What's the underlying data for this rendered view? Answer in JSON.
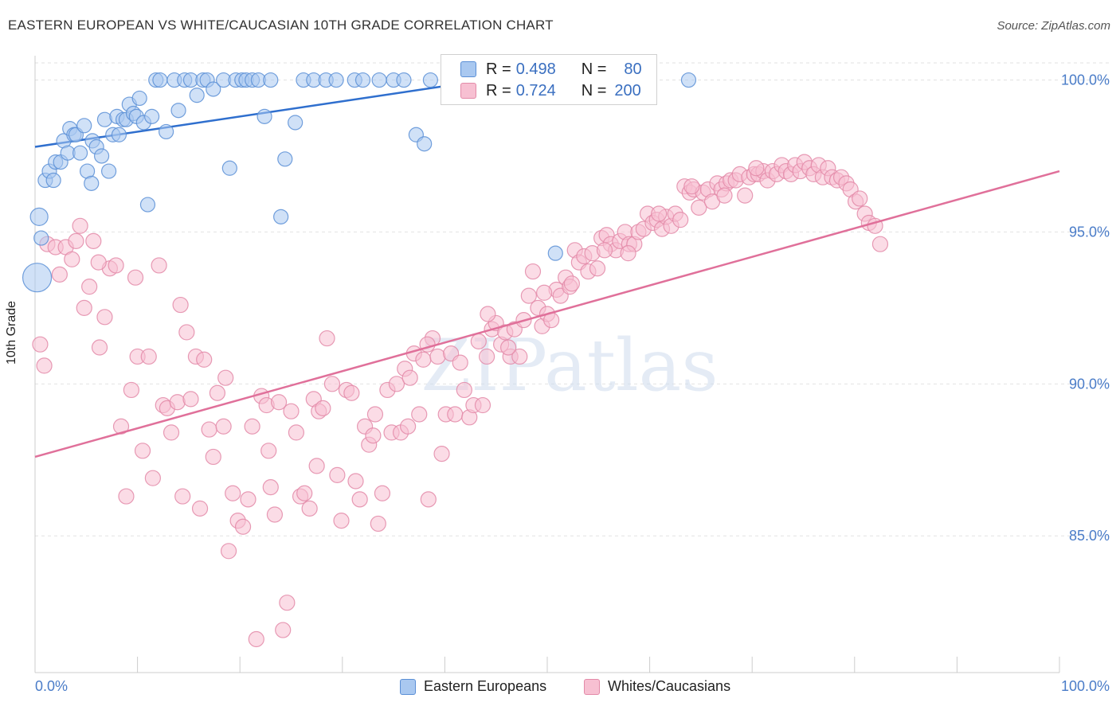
{
  "title": "EASTERN EUROPEAN VS WHITE/CAUCASIAN 10TH GRADE CORRELATION CHART",
  "source": "Source: ZipAtlas.com",
  "watermark": "ZIPatlas",
  "colors": {
    "blue_fill": "#a9c8f0",
    "blue_stroke": "#5b8fd6",
    "blue_line": "#2f6fce",
    "pink_fill": "#f7c0d2",
    "pink_stroke": "#e38aa8",
    "pink_line": "#e0709a",
    "tick_text": "#4a7cc8"
  },
  "stats": [
    {
      "label": "R =",
      "r": "0.498",
      "n_label": "N =",
      "n": "80"
    },
    {
      "label": "R =",
      "r": "0.724",
      "n_label": "N =",
      "n": "200"
    }
  ],
  "legend": [
    {
      "name": "Eastern Europeans"
    },
    {
      "name": "Whites/Caucasians"
    }
  ],
  "chart_data": {
    "type": "scatter",
    "title": "EASTERN EUROPEAN VS WHITE/CAUCASIAN 10TH GRADE CORRELATION CHART",
    "xlabel": "",
    "ylabel": "10th Grade",
    "xlim": [
      0,
      100
    ],
    "ylim": [
      80.5,
      100.8
    ],
    "x_tick_labels": [
      "0.0%",
      "100.0%"
    ],
    "y_ticks": [
      85,
      90,
      95,
      100
    ],
    "y_tick_labels": [
      "85.0%",
      "90.0%",
      "95.0%",
      "100.0%"
    ],
    "grid": "horizontal dashed",
    "legend_position": "bottom",
    "series": [
      {
        "name": "Eastern Europeans",
        "trend": [
          [
            0,
            97.8
          ],
          [
            44,
            100.0
          ]
        ],
        "points": [
          [
            0.2,
            93.5
          ],
          [
            0.4,
            95.5
          ],
          [
            0.6,
            94.8
          ],
          [
            1.0,
            96.7
          ],
          [
            1.4,
            97.0
          ],
          [
            1.8,
            96.7
          ],
          [
            2.0,
            97.3
          ],
          [
            2.5,
            97.3
          ],
          [
            2.8,
            98.0
          ],
          [
            3.2,
            97.6
          ],
          [
            3.4,
            98.4
          ],
          [
            3.8,
            98.2
          ],
          [
            4.0,
            98.2
          ],
          [
            4.4,
            97.6
          ],
          [
            4.8,
            98.5
          ],
          [
            5.1,
            97.0
          ],
          [
            5.5,
            96.6
          ],
          [
            5.6,
            98.0
          ],
          [
            6.0,
            97.8
          ],
          [
            6.5,
            97.5
          ],
          [
            6.8,
            98.7
          ],
          [
            7.2,
            97.0
          ],
          [
            7.6,
            98.2
          ],
          [
            8.0,
            98.8
          ],
          [
            8.2,
            98.2
          ],
          [
            8.6,
            98.7
          ],
          [
            8.9,
            98.7
          ],
          [
            9.2,
            99.2
          ],
          [
            9.6,
            98.9
          ],
          [
            9.9,
            98.8
          ],
          [
            10.2,
            99.4
          ],
          [
            10.6,
            98.6
          ],
          [
            11.0,
            95.9
          ],
          [
            11.4,
            98.8
          ],
          [
            11.8,
            100.0
          ],
          [
            12.2,
            100.0
          ],
          [
            12.8,
            98.3
          ],
          [
            13.6,
            100.0
          ],
          [
            14.0,
            99.0
          ],
          [
            14.6,
            100.0
          ],
          [
            15.2,
            100.0
          ],
          [
            15.8,
            99.5
          ],
          [
            16.4,
            100.0
          ],
          [
            16.8,
            100.0
          ],
          [
            17.4,
            99.7
          ],
          [
            18.4,
            100.0
          ],
          [
            19.0,
            97.1
          ],
          [
            19.6,
            100.0
          ],
          [
            20.2,
            100.0
          ],
          [
            20.6,
            100.0
          ],
          [
            21.2,
            100.0
          ],
          [
            21.8,
            100.0
          ],
          [
            22.4,
            98.8
          ],
          [
            23.0,
            100.0
          ],
          [
            24.0,
            95.5
          ],
          [
            24.4,
            97.4
          ],
          [
            25.4,
            98.6
          ],
          [
            26.2,
            100.0
          ],
          [
            27.2,
            100.0
          ],
          [
            28.4,
            100.0
          ],
          [
            29.4,
            100.0
          ],
          [
            31.2,
            100.0
          ],
          [
            32.0,
            100.0
          ],
          [
            33.6,
            100.0
          ],
          [
            35.0,
            100.0
          ],
          [
            36.0,
            100.0
          ],
          [
            37.2,
            98.2
          ],
          [
            38.0,
            97.9
          ],
          [
            38.6,
            100.0
          ],
          [
            40.6,
            100.0
          ],
          [
            41.2,
            100.0
          ],
          [
            42.2,
            100.0
          ],
          [
            43.0,
            100.0
          ],
          [
            43.6,
            100.0
          ],
          [
            44.6,
            100.0
          ],
          [
            46.6,
            100.0
          ],
          [
            48.8,
            100.0
          ],
          [
            50.8,
            94.3
          ],
          [
            52.4,
            100.0
          ],
          [
            63.8,
            100.0
          ]
        ]
      },
      {
        "name": "Whites/Caucasians",
        "trend": [
          [
            0,
            87.6
          ],
          [
            100,
            97.0
          ]
        ],
        "points": [
          [
            0.5,
            91.3
          ],
          [
            0.9,
            90.6
          ],
          [
            1.2,
            94.6
          ],
          [
            2.0,
            94.5
          ],
          [
            2.4,
            93.6
          ],
          [
            3.0,
            94.5
          ],
          [
            3.6,
            94.1
          ],
          [
            4.0,
            94.7
          ],
          [
            4.4,
            95.2
          ],
          [
            4.8,
            92.5
          ],
          [
            5.3,
            93.2
          ],
          [
            5.7,
            94.7
          ],
          [
            6.3,
            91.2
          ],
          [
            6.8,
            92.2
          ],
          [
            7.3,
            93.8
          ],
          [
            7.9,
            93.9
          ],
          [
            8.4,
            88.6
          ],
          [
            8.9,
            86.3
          ],
          [
            9.4,
            89.8
          ],
          [
            10.0,
            90.9
          ],
          [
            10.5,
            87.8
          ],
          [
            11.1,
            90.9
          ],
          [
            11.5,
            86.9
          ],
          [
            12.1,
            93.9
          ],
          [
            12.5,
            89.3
          ],
          [
            12.9,
            89.2
          ],
          [
            13.3,
            88.4
          ],
          [
            13.9,
            89.4
          ],
          [
            14.4,
            86.3
          ],
          [
            14.8,
            91.7
          ],
          [
            15.2,
            89.5
          ],
          [
            15.7,
            90.9
          ],
          [
            16.1,
            85.9
          ],
          [
            16.5,
            90.8
          ],
          [
            17.0,
            88.5
          ],
          [
            17.4,
            87.6
          ],
          [
            17.8,
            89.7
          ],
          [
            18.4,
            88.6
          ],
          [
            18.9,
            84.5
          ],
          [
            19.3,
            86.4
          ],
          [
            19.8,
            85.5
          ],
          [
            20.3,
            85.3
          ],
          [
            20.8,
            86.2
          ],
          [
            21.2,
            88.6
          ],
          [
            21.6,
            81.6
          ],
          [
            22.1,
            89.6
          ],
          [
            22.6,
            89.3
          ],
          [
            23.0,
            86.6
          ],
          [
            23.4,
            85.7
          ],
          [
            23.8,
            89.4
          ],
          [
            24.2,
            81.9
          ],
          [
            24.6,
            82.8
          ],
          [
            25.0,
            89.1
          ],
          [
            25.5,
            88.4
          ],
          [
            25.9,
            86.3
          ],
          [
            26.3,
            86.4
          ],
          [
            26.8,
            85.9
          ],
          [
            27.2,
            89.5
          ],
          [
            27.7,
            89.1
          ],
          [
            28.1,
            89.2
          ],
          [
            28.5,
            91.5
          ],
          [
            29.0,
            90.0
          ],
          [
            29.5,
            87.0
          ],
          [
            29.9,
            85.5
          ],
          [
            30.4,
            89.8
          ],
          [
            30.9,
            89.7
          ],
          [
            31.3,
            86.8
          ],
          [
            31.7,
            86.2
          ],
          [
            32.2,
            88.6
          ],
          [
            32.6,
            88.0
          ],
          [
            33.0,
            88.3
          ],
          [
            33.5,
            85.4
          ],
          [
            33.9,
            86.4
          ],
          [
            34.4,
            89.8
          ],
          [
            34.8,
            88.4
          ],
          [
            35.3,
            90.0
          ],
          [
            35.7,
            88.4
          ],
          [
            36.1,
            90.5
          ],
          [
            36.6,
            90.2
          ],
          [
            37.0,
            91.0
          ],
          [
            37.5,
            89.0
          ],
          [
            37.9,
            90.8
          ],
          [
            38.4,
            86.2
          ],
          [
            38.8,
            91.5
          ],
          [
            39.3,
            90.9
          ],
          [
            39.7,
            87.7
          ],
          [
            40.1,
            89.0
          ],
          [
            40.6,
            91.0
          ],
          [
            41.0,
            89.0
          ],
          [
            41.5,
            90.7
          ],
          [
            41.9,
            89.8
          ],
          [
            42.4,
            88.9
          ],
          [
            42.8,
            89.3
          ],
          [
            43.3,
            91.4
          ],
          [
            43.7,
            89.3
          ],
          [
            44.1,
            90.9
          ],
          [
            44.6,
            91.8
          ],
          [
            45.0,
            92.0
          ],
          [
            45.5,
            91.3
          ],
          [
            45.9,
            91.7
          ],
          [
            46.4,
            90.9
          ],
          [
            46.8,
            91.8
          ],
          [
            47.3,
            90.9
          ],
          [
            47.7,
            92.1
          ],
          [
            48.2,
            92.9
          ],
          [
            48.6,
            93.7
          ],
          [
            49.1,
            92.5
          ],
          [
            49.5,
            91.9
          ],
          [
            50.0,
            92.3
          ],
          [
            50.4,
            92.1
          ],
          [
            50.9,
            93.1
          ],
          [
            51.3,
            92.9
          ],
          [
            51.8,
            93.5
          ],
          [
            52.2,
            93.2
          ],
          [
            52.7,
            94.4
          ],
          [
            53.1,
            94.0
          ],
          [
            53.6,
            94.2
          ],
          [
            54.0,
            93.7
          ],
          [
            54.4,
            94.3
          ],
          [
            54.9,
            93.8
          ],
          [
            55.3,
            94.8
          ],
          [
            55.8,
            94.9
          ],
          [
            56.2,
            94.6
          ],
          [
            56.7,
            94.4
          ],
          [
            57.1,
            94.7
          ],
          [
            57.6,
            95.0
          ],
          [
            58.0,
            94.6
          ],
          [
            58.5,
            94.6
          ],
          [
            58.9,
            95.0
          ],
          [
            59.4,
            95.1
          ],
          [
            59.8,
            95.6
          ],
          [
            60.3,
            95.3
          ],
          [
            60.7,
            95.4
          ],
          [
            61.2,
            95.1
          ],
          [
            61.6,
            95.5
          ],
          [
            62.1,
            95.2
          ],
          [
            62.5,
            95.6
          ],
          [
            63.0,
            95.4
          ],
          [
            63.4,
            96.5
          ],
          [
            63.9,
            96.3
          ],
          [
            64.3,
            96.4
          ],
          [
            64.8,
            95.8
          ],
          [
            65.2,
            96.3
          ],
          [
            65.7,
            96.4
          ],
          [
            66.1,
            96.0
          ],
          [
            66.6,
            96.6
          ],
          [
            67.0,
            96.4
          ],
          [
            67.5,
            96.6
          ],
          [
            67.9,
            96.7
          ],
          [
            68.4,
            96.7
          ],
          [
            68.8,
            96.9
          ],
          [
            69.3,
            96.2
          ],
          [
            69.7,
            96.8
          ],
          [
            70.2,
            96.9
          ],
          [
            70.6,
            96.9
          ],
          [
            71.1,
            97.0
          ],
          [
            71.5,
            96.7
          ],
          [
            72.0,
            97.0
          ],
          [
            72.4,
            96.9
          ],
          [
            72.9,
            97.2
          ],
          [
            73.3,
            97.0
          ],
          [
            73.8,
            96.9
          ],
          [
            74.2,
            97.2
          ],
          [
            74.7,
            97.0
          ],
          [
            75.1,
            97.3
          ],
          [
            75.6,
            97.1
          ],
          [
            76.0,
            96.9
          ],
          [
            76.5,
            97.2
          ],
          [
            76.9,
            96.8
          ],
          [
            77.4,
            97.1
          ],
          [
            77.8,
            96.8
          ],
          [
            78.3,
            96.7
          ],
          [
            78.7,
            96.8
          ],
          [
            79.2,
            96.6
          ],
          [
            79.6,
            96.4
          ],
          [
            80.1,
            96.0
          ],
          [
            80.5,
            96.1
          ],
          [
            81.0,
            95.6
          ],
          [
            81.4,
            95.3
          ],
          [
            82.0,
            95.2
          ],
          [
            82.5,
            94.6
          ],
          [
            6.2,
            94.0
          ],
          [
            9.8,
            93.5
          ],
          [
            14.2,
            92.6
          ],
          [
            18.6,
            90.2
          ],
          [
            22.8,
            87.8
          ],
          [
            27.5,
            87.3
          ],
          [
            33.2,
            89.0
          ],
          [
            36.4,
            88.6
          ],
          [
            38.3,
            91.3
          ],
          [
            44.2,
            92.3
          ],
          [
            46.2,
            91.2
          ],
          [
            49.7,
            93.0
          ],
          [
            52.4,
            93.3
          ],
          [
            55.6,
            94.4
          ],
          [
            57.9,
            94.3
          ],
          [
            60.9,
            95.6
          ],
          [
            64.1,
            96.5
          ],
          [
            67.3,
            96.2
          ],
          [
            70.4,
            97.1
          ]
        ]
      }
    ]
  }
}
